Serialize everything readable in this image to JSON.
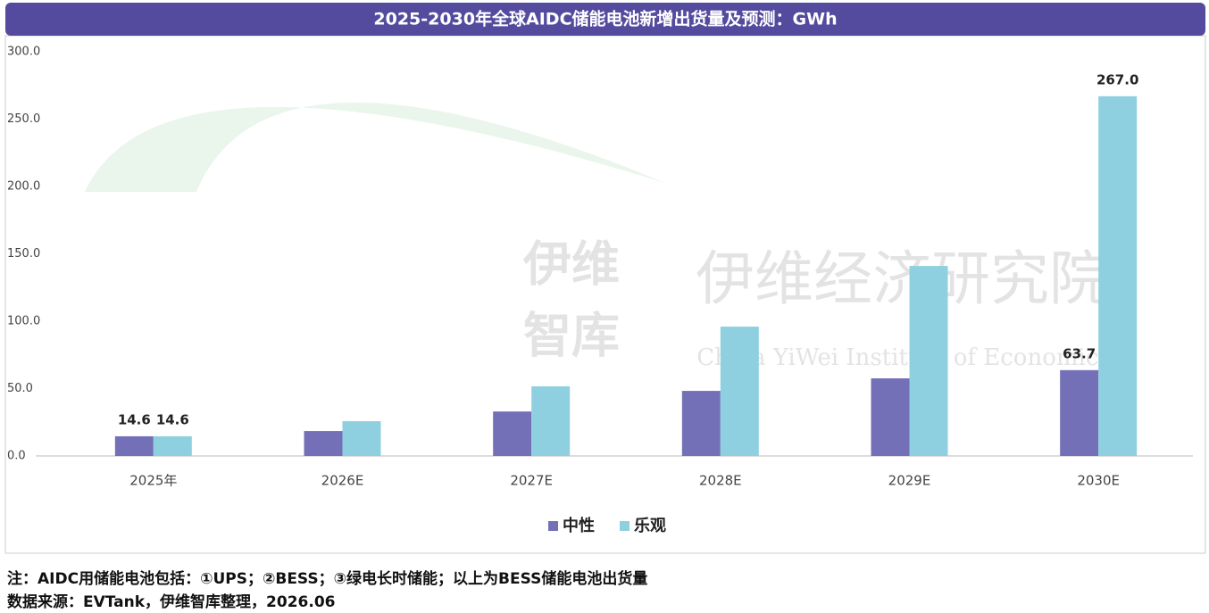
{
  "chart_data": {
    "type": "bar",
    "title": "2025-2030年全球AIDC储能电池新增出货量及预测：GWh",
    "categories": [
      "2025年",
      "2026E",
      "2027E",
      "2028E",
      "2029E",
      "2030E"
    ],
    "series": [
      {
        "name": "中性",
        "color": "#7470b8",
        "values": [
          14.6,
          18.5,
          33,
          48.3,
          57.6,
          63.7
        ],
        "value_labels": [
          "14.6",
          null,
          null,
          null,
          null,
          "63.7"
        ]
      },
      {
        "name": "乐观",
        "color": "#8fd0e0",
        "values": [
          14.6,
          25.8,
          51.7,
          96,
          141,
          267.0
        ],
        "value_labels": [
          "14.6",
          null,
          null,
          null,
          null,
          "267.0"
        ]
      }
    ],
    "ylim": [
      0,
      300
    ],
    "yticks": [
      {
        "value": 0,
        "label": "0.0"
      },
      {
        "value": 50,
        "label": "50.0"
      },
      {
        "value": 100,
        "label": "100.0"
      },
      {
        "value": 150,
        "label": "150.0"
      },
      {
        "value": 200,
        "label": "200.0"
      },
      {
        "value": 250,
        "label": "250.0"
      },
      {
        "value": 300,
        "label": "300.0"
      }
    ],
    "grid": false,
    "legend": "bottom"
  },
  "watermark": {
    "brand": [
      "伊维",
      "智库"
    ],
    "name_cn": "伊维经济研究院",
    "name_en": "China YiWei Institute of Economics"
  },
  "notes": [
    "注：AIDC用储能电池包括：①UPS；②BESS；③绿电长时储能；以上为BESS储能电池出货量",
    "数据来源：EVTank，伊维智库整理，2026.06"
  ]
}
